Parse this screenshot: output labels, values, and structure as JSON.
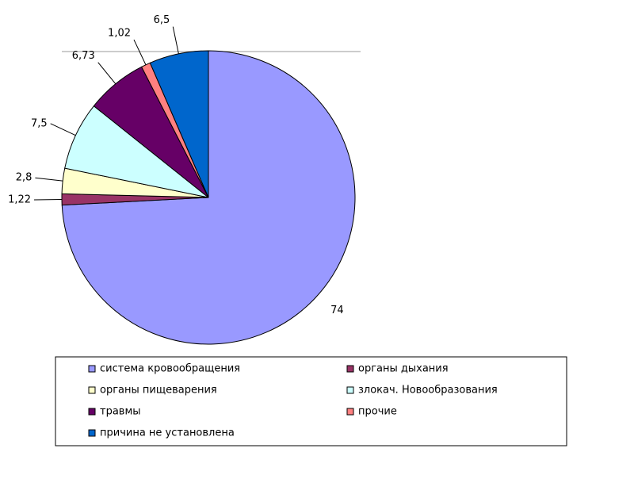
{
  "chart_data": {
    "type": "pie",
    "categories": [
      "система кровообращения",
      "органы дыхания",
      "органы пищеварения",
      "злокач. Новообразования",
      "травмы",
      "прочие",
      "причина не установлена"
    ],
    "values": [
      74,
      1.22,
      2.8,
      7.5,
      6.73,
      1.02,
      6.5
    ],
    "value_labels": [
      "74",
      "1,22",
      "2,8",
      "7,5",
      "6,73",
      "1,02",
      "6,5"
    ],
    "colors": [
      "#9999ff",
      "#993366",
      "#ffffcc",
      "#ccffff",
      "#660066",
      "#ff8080",
      "#0066cc"
    ]
  }
}
